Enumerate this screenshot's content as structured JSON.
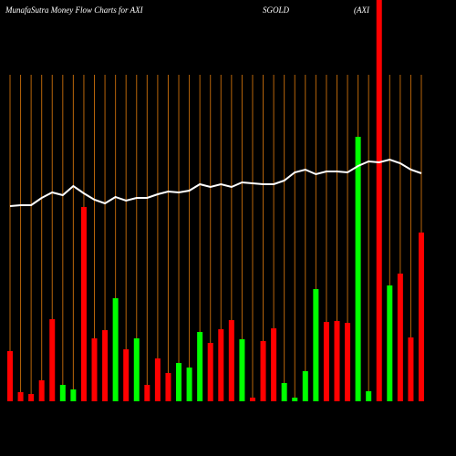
{
  "chart_data": {
    "type": "bar",
    "title": "MunafaSutra  Money Flow  Charts for AXI",
    "subtitle": "SGOLD",
    "annotation": "(AXI",
    "categories": [
      null,
      null,
      null,
      null,
      null,
      null,
      null,
      null,
      null,
      null,
      null,
      null,
      null,
      null,
      null,
      null,
      null,
      null,
      null,
      null,
      null,
      null,
      null,
      null,
      null,
      null,
      null,
      null,
      null,
      null,
      null,
      null,
      null,
      null,
      null,
      null,
      null,
      null,
      null,
      null
    ],
    "values": [
      55,
      10,
      8,
      23,
      90,
      18,
      13,
      213,
      69,
      78,
      113,
      57,
      69,
      18,
      47,
      31,
      42,
      37,
      76,
      64,
      79,
      89,
      68,
      4,
      66,
      80,
      20,
      4,
      33,
      123,
      87,
      88,
      86,
      290,
      11,
      440,
      127,
      140,
      70,
      185
    ],
    "colors": [
      "#ff0000",
      "#ff0000",
      "#ff0000",
      "#ff0000",
      "#ff0000",
      "#00ff00",
      "#00ff00",
      "#ff0000",
      "#ff0000",
      "#ff0000",
      "#00ff00",
      "#ff0000",
      "#00ff00",
      "#ff0000",
      "#ff0000",
      "#ff0000",
      "#00ff00",
      "#00ff00",
      "#00ff00",
      "#ff0000",
      "#ff0000",
      "#ff0000",
      "#00ff00",
      "#ff0000",
      "#ff0000",
      "#ff0000",
      "#00ff00",
      "#00ff00",
      "#00ff00",
      "#00ff00",
      "#ff0000",
      "#ff0000",
      "#ff0000",
      "#00ff00",
      "#00ff00",
      "#ff0000",
      "#00ff00",
      "#ff0000",
      "#ff0000",
      "#ff0000"
    ],
    "line": {
      "color": "#ffffff",
      "values": [
        214,
        215,
        215,
        223,
        229,
        226,
        236,
        228,
        221,
        217,
        224,
        220,
        223,
        223,
        227,
        230,
        229,
        231,
        238,
        235,
        238,
        235,
        240,
        239,
        238,
        238,
        242,
        251,
        254,
        249,
        252,
        252,
        251,
        258,
        263,
        262,
        265,
        261,
        254,
        250
      ]
    },
    "grid_color": "#b8650a",
    "ylim": [
      0,
      440
    ]
  }
}
